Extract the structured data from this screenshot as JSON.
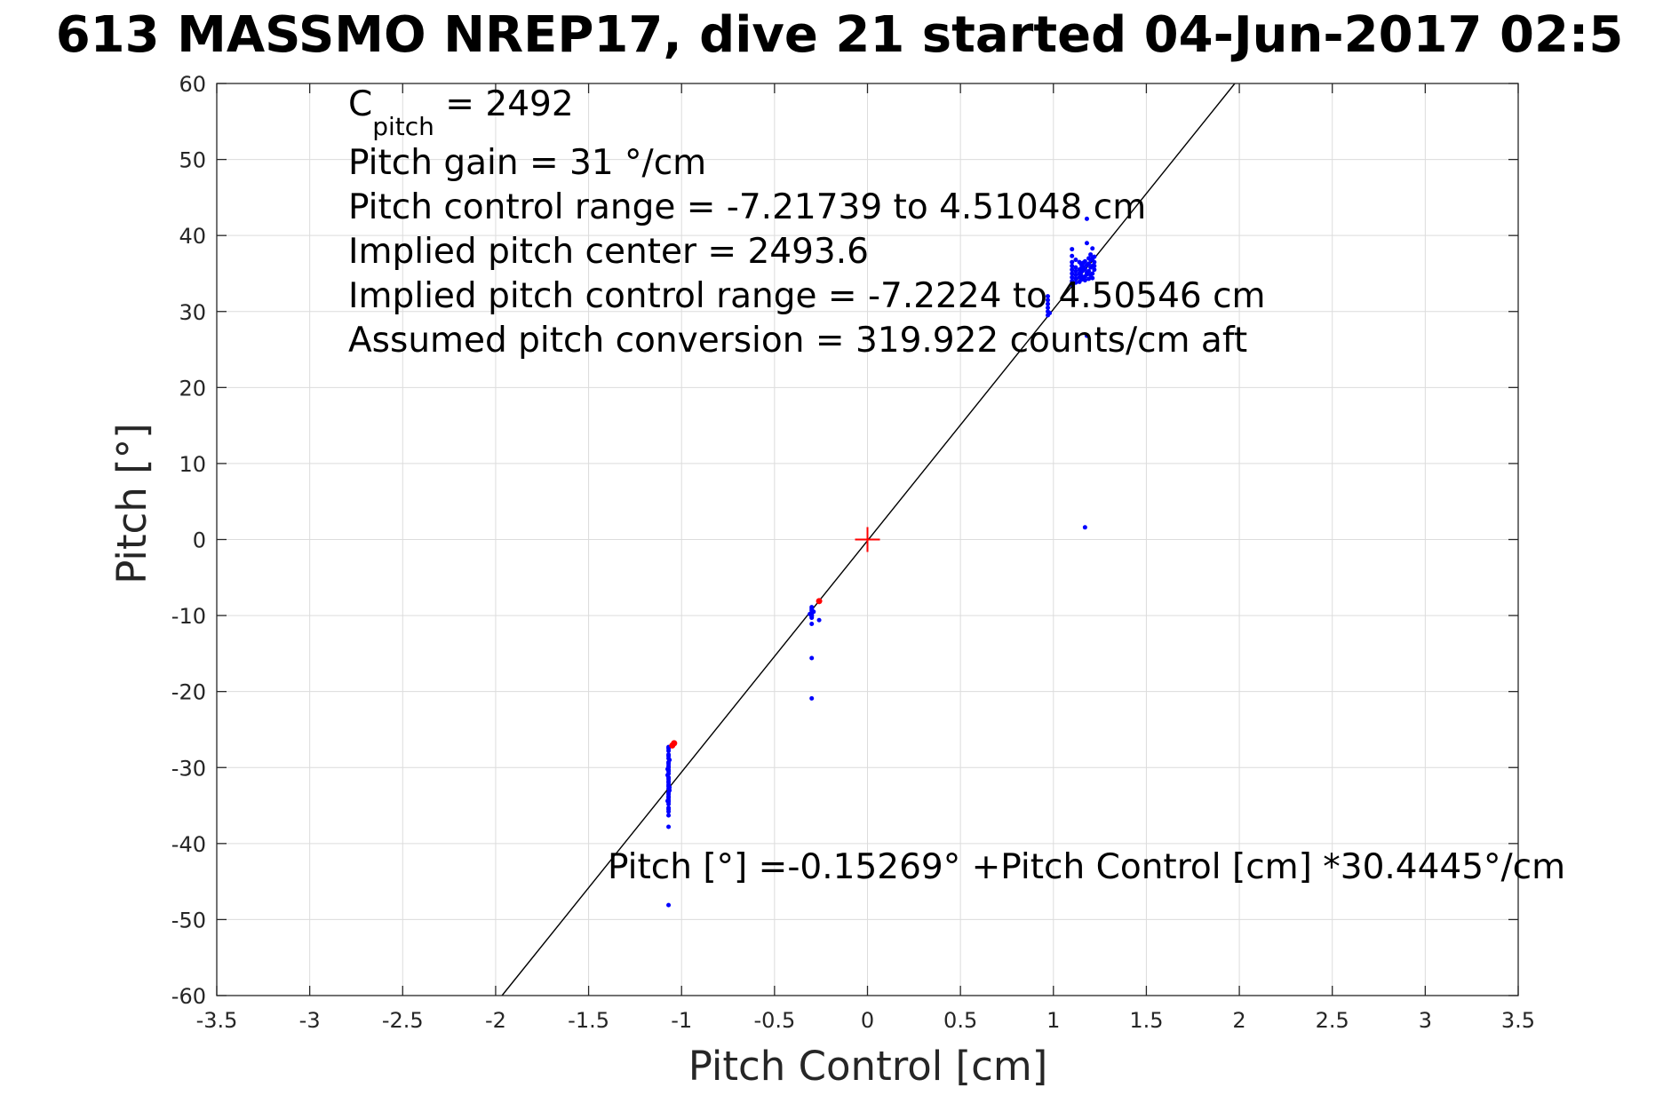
{
  "chart_data": {
    "type": "scatter",
    "title": "613 MASSMO NREP17, dive 21 started 04-Jun-2017 02:5",
    "xlabel": "Pitch Control [cm]",
    "ylabel": "Pitch [°]",
    "xlim": [
      -3.5,
      3.5
    ],
    "ylim": [
      -60,
      60
    ],
    "x_ticks": [
      -3.5,
      -3,
      -2.5,
      -2,
      -1.5,
      -1,
      -0.5,
      0,
      0.5,
      1,
      1.5,
      2,
      2.5,
      3,
      3.5
    ],
    "x_tick_labels": [
      "-3.5",
      "-3",
      "-2.5",
      "-2",
      "-1.5",
      "-1",
      "-0.5",
      "0",
      "0.5",
      "1",
      "1.5",
      "2",
      "2.5",
      "3",
      "3.5"
    ],
    "y_ticks": [
      -60,
      -50,
      -40,
      -30,
      -20,
      -10,
      0,
      10,
      20,
      30,
      40,
      50,
      60
    ],
    "y_tick_labels": [
      "-60",
      "-50",
      "-40",
      "-30",
      "-20",
      "-10",
      "0",
      "10",
      "20",
      "30",
      "40",
      "50",
      "60"
    ],
    "grid": true,
    "fit_line": {
      "intercept": -0.15269,
      "slope": 30.4445,
      "color": "#000000"
    },
    "center_marker": {
      "x": 0,
      "y": 0,
      "color": "#ff0000",
      "symbol": "+"
    },
    "series": [
      {
        "color": "#0000ff",
        "x": [
          -1.07,
          -1.07,
          -1.07,
          -1.07,
          -1.07,
          -1.07,
          -1.07,
          -1.07,
          -1.07,
          -1.07,
          -1.07,
          -1.07,
          -1.07,
          -1.07,
          -1.07,
          -1.07,
          -1.07,
          -1.07,
          -1.07,
          -1.07,
          -1.07,
          -1.07,
          -1.07,
          -1.07,
          -1.07,
          -1.07,
          -1.07,
          -1.07,
          -1.07,
          -1.07,
          -1.07,
          -1.065,
          -1.075,
          -1.065,
          -1.075,
          -1.065,
          -1.075,
          -1.07,
          -1.07,
          -0.3,
          -0.3,
          -0.3,
          -0.3,
          -0.3,
          -0.3,
          -0.29,
          -0.31,
          -0.3,
          -0.3,
          -0.3,
          -0.26,
          -0.3,
          -0.3,
          0.97,
          0.97,
          0.97,
          0.97,
          0.97,
          0.97,
          0.98,
          1.1,
          1.1,
          1.1,
          1.1,
          1.1,
          1.1,
          1.1,
          1.1,
          1.12,
          1.12,
          1.12,
          1.12,
          1.12,
          1.12,
          1.14,
          1.14,
          1.14,
          1.14,
          1.14,
          1.15,
          1.15,
          1.15,
          1.15,
          1.15,
          1.16,
          1.16,
          1.16,
          1.16,
          1.17,
          1.17,
          1.17,
          1.17,
          1.18,
          1.18,
          1.18,
          1.19,
          1.19,
          1.19,
          1.19,
          1.2,
          1.2,
          1.2,
          1.2,
          1.21,
          1.21,
          1.21,
          1.21,
          1.22,
          1.22,
          1.22,
          1.22,
          1.18,
          1.18,
          1.1,
          1.21,
          1.17,
          1.18
        ],
        "y": [
          -27.3,
          -27.8,
          -28.3,
          -28.8,
          -29.3,
          -29.8,
          -30.3,
          -30.8,
          -31.3,
          -31.8,
          -32.3,
          -32.8,
          -33.3,
          -33.8,
          -34.3,
          -34.8,
          -35.3,
          -35.8,
          -36.3,
          -27.5,
          -28.5,
          -29.5,
          -30.5,
          -31.5,
          -32.5,
          -33.5,
          -34.5,
          -35.5,
          -30.0,
          -32.0,
          -34.0,
          -29.0,
          -31.0,
          -33.0,
          -30.2,
          -32.6,
          -34.4,
          -37.8,
          -48.1,
          -8.9,
          -9.3,
          -9.7,
          -10.0,
          -10.3,
          -9.1,
          -9.5,
          -9.8,
          -10.1,
          -11.1,
          -15.6,
          -10.6,
          -20.9,
          -9.9,
          29.5,
          30.0,
          30.5,
          31.0,
          31.5,
          32.0,
          29.8,
          33.5,
          34.5,
          35.5,
          36.5,
          37.3,
          34.0,
          35.0,
          36.0,
          33.8,
          34.8,
          35.8,
          36.8,
          35.3,
          34.3,
          34.5,
          35.5,
          36.5,
          35.0,
          33.9,
          34.2,
          35.2,
          36.2,
          35.7,
          34.7,
          34.4,
          35.4,
          36.4,
          35.9,
          34.6,
          35.6,
          36.6,
          34.1,
          35.1,
          36.1,
          34.9,
          34.3,
          35.3,
          36.3,
          37.0,
          34.8,
          35.8,
          36.8,
          37.5,
          35.0,
          36.0,
          37.0,
          34.4,
          35.5,
          36.5,
          37.2,
          36.0,
          42.2,
          39.0,
          38.2,
          38.3,
          1.6,
          26.8
        ],
        "marker_size": 2.5
      },
      {
        "color": "#ff0000",
        "x": [
          -1.04,
          -1.05,
          -0.26
        ],
        "y": [
          -26.8,
          -27.1,
          -8.1
        ],
        "marker_size": 3.5
      }
    ],
    "annotations": [
      {
        "text": "Pitch gain = 31 °/cm"
      },
      {
        "text": "Pitch control range = -7.21739 to 4.51048 cm"
      },
      {
        "text": "Implied pitch center = 2493.6"
      },
      {
        "text": "Implied pitch control range = -7.2224 to 4.50546 cm"
      },
      {
        "text": "Assumed pitch conversion = 319.922 counts/cm aft"
      },
      {
        "text": "Pitch [°] =-0.15269° +Pitch Control [cm] *30.4445°/cm"
      }
    ],
    "cpitch": {
      "base": "C",
      "subscript": "pitch",
      "rest": " = 2492"
    }
  }
}
